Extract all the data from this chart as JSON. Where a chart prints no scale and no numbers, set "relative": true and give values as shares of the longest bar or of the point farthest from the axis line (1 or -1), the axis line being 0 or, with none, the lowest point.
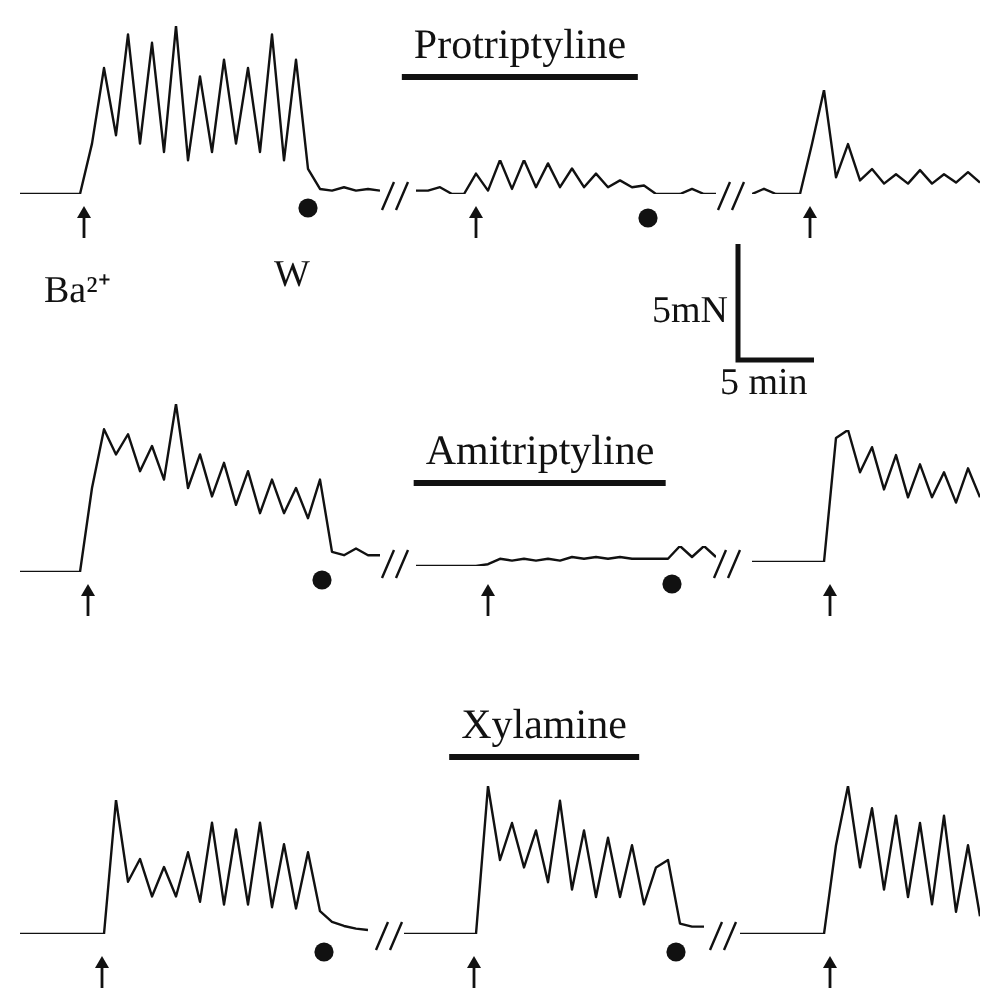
{
  "chart_data": [
    {
      "type": "line",
      "relative": true,
      "color": "#111111",
      "annotations": [
        "Ba²⁺",
        "W"
      ],
      "categories": [
        null,
        null,
        null,
        null,
        null,
        null,
        null,
        null,
        null,
        null,
        null,
        null,
        null,
        null,
        null,
        null,
        null,
        null,
        null,
        null,
        null,
        null,
        null,
        null,
        null,
        null,
        null,
        null,
        null,
        null,
        null
      ],
      "values": [
        0,
        0,
        0,
        0,
        0,
        0,
        0.3,
        0.75,
        0.35,
        0.95,
        0.3,
        0.9,
        0.25,
        1.0,
        0.2,
        0.7,
        0.25,
        0.8,
        0.3,
        0.75,
        0.25,
        0.95,
        0.2,
        0.8,
        0.15,
        0.03,
        0.02,
        0.04,
        0.02,
        0.03,
        0.02
      ]
    },
    {
      "type": "line",
      "title": "Protriptyline",
      "relative": true,
      "color": "#111111",
      "categories": [
        null,
        null,
        null,
        null,
        null,
        null,
        null,
        null,
        null,
        null,
        null,
        null,
        null,
        null,
        null,
        null,
        null,
        null,
        null,
        null,
        null,
        null,
        null,
        null,
        null,
        null
      ],
      "values": [
        0.1,
        0.1,
        0.2,
        0,
        0,
        0.6,
        0.1,
        1,
        0.15,
        1,
        0.2,
        0.9,
        0.2,
        0.75,
        0.2,
        0.6,
        0.2,
        0.4,
        0.2,
        0.25,
        0,
        0,
        0,
        0.15,
        0,
        0
      ]
    },
    {
      "type": "line",
      "relative": true,
      "color": "#111111",
      "annotations": [
        "5mN",
        "5 min"
      ],
      "categories": [
        null,
        null,
        null,
        null,
        null,
        null,
        null,
        null,
        null,
        null,
        null,
        null,
        null,
        null,
        null,
        null,
        null,
        null,
        null,
        null
      ],
      "values": [
        0,
        0.05,
        0,
        0,
        0,
        0.48,
        1,
        0.16,
        0.48,
        0.13,
        0.24,
        0.1,
        0.19,
        0.1,
        0.23,
        0.1,
        0.19,
        0.11,
        0.21,
        0.11
      ]
    },
    {
      "type": "line",
      "relative": true,
      "color": "#111111",
      "categories": [
        null,
        null,
        null,
        null,
        null,
        null,
        null,
        null,
        null,
        null,
        null,
        null,
        null,
        null,
        null,
        null,
        null,
        null,
        null,
        null,
        null,
        null,
        null,
        null,
        null,
        null,
        null,
        null,
        null,
        null,
        null
      ],
      "values": [
        0,
        0,
        0,
        0,
        0,
        0,
        0.5,
        0.85,
        0.7,
        0.82,
        0.6,
        0.75,
        0.55,
        1.0,
        0.5,
        0.7,
        0.45,
        0.65,
        0.4,
        0.6,
        0.35,
        0.55,
        0.35,
        0.5,
        0.32,
        0.55,
        0.12,
        0.1,
        0.14,
        0.1,
        0.1
      ]
    },
    {
      "type": "line",
      "title": "Amitriptyline",
      "relative": true,
      "color": "#111111",
      "categories": [
        null,
        null,
        null,
        null,
        null,
        null,
        null,
        null,
        null,
        null,
        null,
        null,
        null,
        null,
        null,
        null,
        null,
        null,
        null,
        null,
        null,
        null,
        null,
        null,
        null,
        null
      ],
      "values": [
        0,
        0,
        0,
        0,
        0,
        0,
        0.09,
        0.36,
        0.27,
        0.36,
        0.27,
        0.36,
        0.27,
        0.45,
        0.36,
        0.45,
        0.36,
        0.45,
        0.36,
        0.36,
        0.36,
        0.36,
        1,
        0.45,
        1,
        0.45
      ]
    },
    {
      "type": "line",
      "relative": true,
      "color": "#111111",
      "categories": [
        null,
        null,
        null,
        null,
        null,
        null,
        null,
        null,
        null,
        null,
        null,
        null,
        null,
        null,
        null,
        null,
        null,
        null,
        null,
        null
      ],
      "values": [
        0,
        0,
        0,
        0,
        0,
        0,
        0,
        0.94,
        1,
        0.68,
        0.87,
        0.55,
        0.81,
        0.49,
        0.74,
        0.49,
        0.68,
        0.45,
        0.71,
        0.49
      ]
    },
    {
      "type": "line",
      "relative": true,
      "color": "#111111",
      "categories": [
        null,
        null,
        null,
        null,
        null,
        null,
        null,
        null,
        null,
        null,
        null,
        null,
        null,
        null,
        null,
        null,
        null,
        null,
        null,
        null,
        null,
        null,
        null,
        null,
        null,
        null,
        null,
        null,
        null,
        null
      ],
      "values": [
        0,
        0,
        0,
        0,
        0,
        0,
        0,
        0,
        1,
        0.39,
        0.56,
        0.28,
        0.5,
        0.28,
        0.61,
        0.24,
        0.83,
        0.22,
        0.78,
        0.22,
        0.83,
        0.2,
        0.67,
        0.19,
        0.61,
        0.17,
        0.09,
        0.06,
        0.04,
        0.03
      ]
    },
    {
      "type": "line",
      "title": "Xylamine",
      "relative": true,
      "color": "#111111",
      "categories": [
        null,
        null,
        null,
        null,
        null,
        null,
        null,
        null,
        null,
        null,
        null,
        null,
        null,
        null,
        null,
        null,
        null,
        null,
        null,
        null,
        null,
        null,
        null,
        null,
        null,
        null
      ],
      "values": [
        0,
        0,
        0,
        0,
        0,
        0,
        0,
        1.0,
        0.5,
        0.75,
        0.45,
        0.7,
        0.35,
        0.9,
        0.3,
        0.7,
        0.25,
        0.65,
        0.25,
        0.6,
        0.2,
        0.45,
        0.5,
        0.07,
        0.05,
        0.05
      ]
    },
    {
      "type": "line",
      "relative": true,
      "color": "#111111",
      "categories": [
        null,
        null,
        null,
        null,
        null,
        null,
        null,
        null,
        null,
        null,
        null,
        null,
        null,
        null,
        null,
        null,
        null,
        null,
        null,
        null,
        null
      ],
      "values": [
        0,
        0,
        0,
        0,
        0,
        0,
        0,
        0,
        0.6,
        1.0,
        0.45,
        0.85,
        0.3,
        0.8,
        0.25,
        0.75,
        0.2,
        0.8,
        0.15,
        0.6,
        0.12
      ]
    }
  ]
}
